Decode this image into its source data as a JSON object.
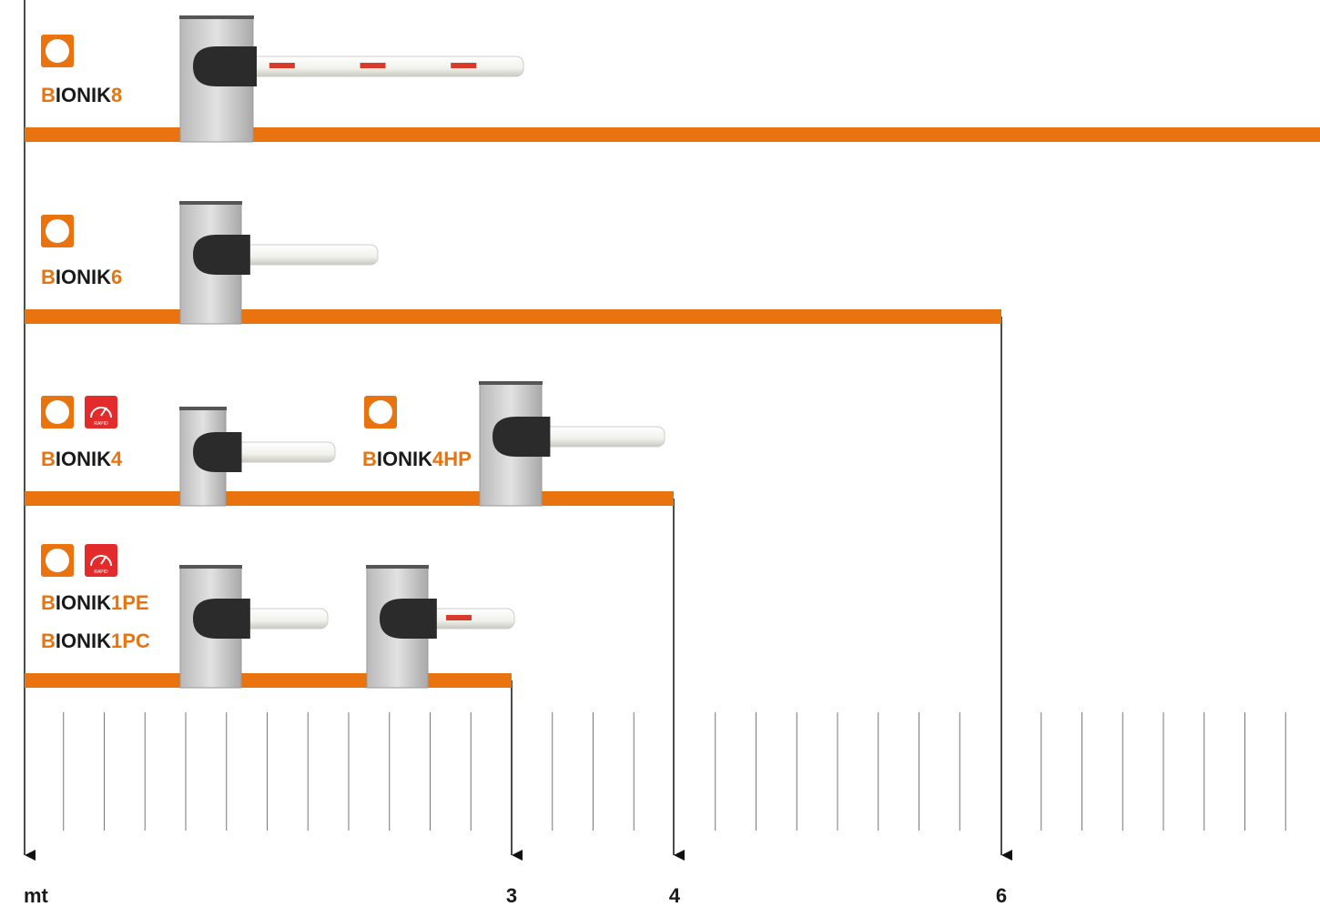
{
  "badge_text": "RAPID",
  "products": [
    {
      "names": [
        [
          "B",
          "IONIK",
          "8"
        ]
      ]
    },
    {
      "names": [
        [
          "B",
          "IONIK",
          "6"
        ]
      ]
    },
    {
      "names": [
        [
          "B",
          "IONIK",
          "4"
        ]
      ]
    },
    {
      "names": [
        [
          "B",
          "IONIK",
          "4HP"
        ]
      ]
    },
    {
      "names": [
        [
          "B",
          "IONIK",
          "1PE"
        ],
        [
          "B",
          "IONIK",
          "1PC"
        ]
      ]
    }
  ],
  "scale": {
    "unit": "mt",
    "marks": [
      3,
      4,
      6
    ]
  }
}
